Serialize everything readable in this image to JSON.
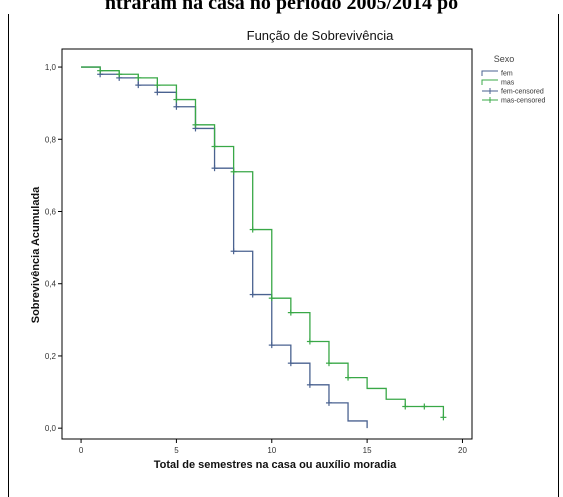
{
  "page": {
    "top_caption": "ntraram na casa no período 2005/2014 po"
  },
  "chart_data": {
    "type": "line",
    "step": true,
    "title": "Função de Sobrevivência",
    "xlabel": "Total de semestres na casa ou auxílio moradia",
    "ylabel": "Sobrevivência Acumulada",
    "xlim": [
      -1,
      20.5
    ],
    "ylim": [
      -0.03,
      1.05
    ],
    "x_ticks": [
      0,
      5,
      10,
      15,
      20
    ],
    "x_tick_labels": [
      "0",
      "5",
      "10",
      "15",
      "20"
    ],
    "y_ticks": [
      0.0,
      0.2,
      0.4,
      0.6,
      0.8,
      1.0
    ],
    "y_tick_labels": [
      "0,0",
      "0,2",
      "0,4",
      "0,6",
      "0,8",
      "1,0"
    ],
    "grid": false,
    "legend": {
      "title": "Sexo",
      "placement": "right",
      "entries": [
        "fem",
        "mas",
        "fem-censored",
        "mas-censored"
      ]
    },
    "series": [
      {
        "name": "fem",
        "color": "#4a6290",
        "x": [
          0,
          1,
          2,
          3,
          4,
          5,
          6,
          7,
          8,
          9,
          10,
          11,
          12,
          13,
          14,
          15
        ],
        "y": [
          1.0,
          0.98,
          0.97,
          0.95,
          0.93,
          0.89,
          0.83,
          0.72,
          0.49,
          0.37,
          0.23,
          0.18,
          0.12,
          0.07,
          0.02,
          0.0
        ],
        "censored_x": [
          1,
          2,
          3,
          4,
          5,
          6,
          7,
          8,
          9,
          10,
          11,
          12,
          13
        ],
        "censored_y": [
          0.98,
          0.97,
          0.95,
          0.93,
          0.89,
          0.83,
          0.72,
          0.49,
          0.37,
          0.23,
          0.18,
          0.12,
          0.07
        ]
      },
      {
        "name": "mas",
        "color": "#39a847",
        "x": [
          0,
          1,
          2,
          3,
          4,
          5,
          6,
          7,
          8,
          9,
          10,
          11,
          12,
          13,
          14,
          15,
          16,
          17,
          18,
          19
        ],
        "y": [
          1.0,
          0.99,
          0.98,
          0.97,
          0.95,
          0.91,
          0.84,
          0.78,
          0.71,
          0.55,
          0.36,
          0.32,
          0.24,
          0.18,
          0.14,
          0.11,
          0.08,
          0.06,
          0.06,
          0.03
        ],
        "censored_x": [
          1,
          2,
          3,
          4,
          5,
          6,
          7,
          8,
          9,
          10,
          11,
          12,
          13,
          14,
          17,
          18,
          19
        ],
        "censored_y": [
          0.99,
          0.98,
          0.97,
          0.95,
          0.91,
          0.84,
          0.78,
          0.71,
          0.55,
          0.36,
          0.32,
          0.24,
          0.18,
          0.14,
          0.06,
          0.06,
          0.03
        ]
      }
    ]
  }
}
